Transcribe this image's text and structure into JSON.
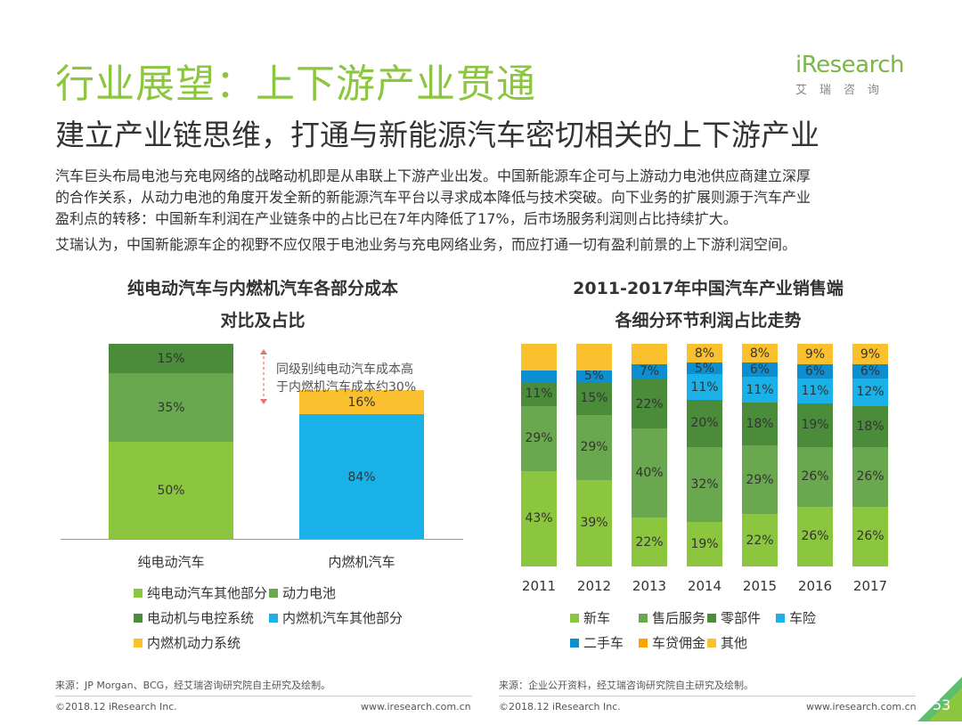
{
  "header": {
    "title": "行业展望：上下游产业贯通",
    "subtitle": "建立产业链思维，打通与新能源汽车密切相关的上下游产业",
    "logo_text": "iResearch",
    "logo_cn": "艾瑞咨询"
  },
  "body_paragraphs": [
    "汽车巨头布局电池与充电网络的战略动机即是从串联上下游产业出发。中国新能源车企可与上游动力电池供应商建立深厚",
    "的合作关系，从动力电池的角度开发全新的新能源汽车平台以寻求成本降低与技术突破。向下业务的扩展则源于汽车产业",
    "盈利点的转移：中国新车利润在产业链条中的占比已在7年内降低了17%，后市场服务利润则占比持续扩大。",
    "艾瑞认为，中国新能源车企的视野不应仅限于电池业务与充电网络业务，而应打通一切有盈利前景的上下游利润空间。"
  ],
  "colors": {
    "light_green": "#8cc63f",
    "mid_green": "#6aa84f",
    "dark_green": "#4a8c3a",
    "cyan": "#1ab0e8",
    "yellow": "#fbc02d",
    "accent_green": "#8cc63f"
  },
  "chart_data": [
    {
      "type": "bar",
      "stacked": true,
      "title_lines": [
        "纯电动汽车与内燃机汽车各部分成本",
        "对比及占比"
      ],
      "categories": [
        "纯电动汽车",
        "内燃机汽车"
      ],
      "series": [
        {
          "name": "纯电动汽车其他部分",
          "color": "#8cc63f",
          "values": [
            50,
            0
          ]
        },
        {
          "name": "动力电池",
          "color": "#6aa84f",
          "values": [
            35,
            0
          ]
        },
        {
          "name": "电动机与电控系统",
          "color": "#4a8c3a",
          "values": [
            15,
            0
          ]
        },
        {
          "name": "内燃机汽车其他部分",
          "color": "#1ab0e8",
          "values": [
            0,
            84
          ]
        },
        {
          "name": "内燃机动力系统",
          "color": "#fbc02d",
          "values": [
            0,
            16
          ]
        }
      ],
      "annotation": [
        "同级别纯电动汽车成本高",
        "于内燃机汽车成本约30%"
      ],
      "source": "来源：JP Morgan、BCG，经艾瑞咨询研究院自主研究及绘制。"
    },
    {
      "type": "bar",
      "stacked": true,
      "title_lines": [
        "2011-2017年中国汽车产业销售端",
        "各细分环节利润占比走势"
      ],
      "categories": [
        "2011",
        "2012",
        "2013",
        "2014",
        "2015",
        "2016",
        "2017"
      ],
      "series": [
        {
          "name": "新车",
          "color": "#8cc63f",
          "values": [
            43,
            39,
            22,
            19,
            22,
            26,
            26
          ],
          "labels": [
            "43%",
            "39%",
            "22%",
            "19%",
            "22%",
            "26%",
            "26%"
          ]
        },
        {
          "name": "售后服务",
          "color": "#6aa84f",
          "values": [
            29,
            29,
            40,
            32,
            29,
            26,
            26
          ],
          "labels": [
            "29%",
            "29%",
            "40%",
            "32%",
            "29%",
            "26%",
            "26%"
          ]
        },
        {
          "name": "零部件",
          "color": "#4a8c3a",
          "values": [
            11,
            15,
            22,
            20,
            18,
            19,
            18
          ],
          "labels": [
            "11%",
            "15%",
            "22%",
            "20%",
            "18%",
            "19%",
            "18%"
          ]
        },
        {
          "name": "车险",
          "color": "#1ab0e8",
          "values": [
            0,
            0,
            0,
            11,
            11,
            11,
            12
          ],
          "labels": [
            "",
            "",
            "",
            "11%",
            "11%",
            "11%",
            "12%"
          ]
        },
        {
          "name": "二手车",
          "color": "#0b8fd0",
          "values": [
            5,
            5,
            7,
            5,
            6,
            6,
            6
          ],
          "labels": [
            "",
            "5%",
            "7%",
            "5%",
            "6%",
            "6%",
            "6%"
          ]
        },
        {
          "name": "车贷佣金",
          "color": "#f7a600",
          "values": [
            0,
            0,
            0,
            0,
            0,
            0,
            0
          ],
          "labels": [
            "",
            "",
            "",
            "",
            "",
            "",
            ""
          ]
        },
        {
          "name": "其他",
          "color": "#fbc02d",
          "values": [
            12,
            12,
            9,
            8,
            8,
            9,
            9
          ],
          "labels": [
            "",
            "",
            "",
            "8%",
            "8%",
            "9%",
            "9%"
          ]
        }
      ],
      "source": "来源：企业公开资料，经艾瑞咨询研究院自主研究及绘制。"
    }
  ],
  "footer": {
    "copyright_left": "©2018.12 iResearch Inc.",
    "url_left": "www.iresearch.com.cn",
    "copyright_right": "©2018.12 iResearch Inc.",
    "url_right": "www.iresearch.com.cn",
    "page_number": "53"
  }
}
